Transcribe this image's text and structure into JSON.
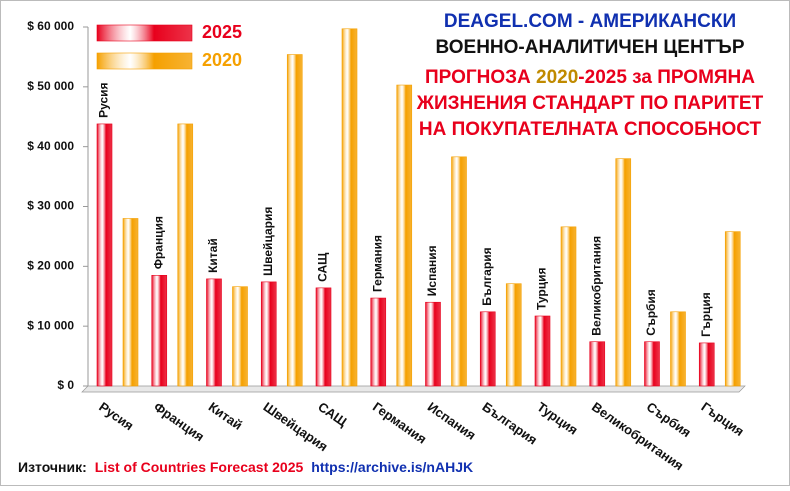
{
  "chart_data": {
    "type": "bar",
    "title_lines": [
      "DEAGEL.COM  -  АМЕРИКАНСКИ",
      "ВОЕННО-АНАЛИТИЧЕН ЦЕНТЪР"
    ],
    "subtitle_parts": [
      "ПРОГНОЗА ",
      "2020",
      "-2025 за ПРОМЯНА"
    ],
    "subtitle_lines": [
      "ЖИЗНЕНИЯ СТАНДАРТ ПО ПАРИТЕТ",
      "НА ПОКУПАТЕЛНАТА СПОСОБНОСТ"
    ],
    "source": [
      "Източник:",
      "List of Countries Forecast 2025",
      "https://archive.is/nAHJK"
    ],
    "categories": [
      "Русия",
      "Франция",
      "Китай",
      "Швейцария",
      "САЩ",
      "Германия",
      "Испания",
      "България",
      "Турция",
      "Великобритания",
      "Сърбия",
      "Гърция"
    ],
    "series": [
      {
        "name": "2025",
        "color": "#e8001c",
        "values": [
          43800,
          18500,
          17900,
          17400,
          16400,
          14700,
          14000,
          12400,
          11700,
          7400,
          7400,
          7200
        ]
      },
      {
        "name": "2020",
        "color": "#f5a000",
        "values": [
          28000,
          43800,
          16600,
          55400,
          59700,
          50300,
          38300,
          17100,
          26600,
          38000,
          12400,
          25800
        ]
      }
    ],
    "ylim": [
      0,
      60000
    ],
    "yticks": [
      {
        "value": 0,
        "label": "$ 0"
      },
      {
        "value": 10000,
        "label": "$ 10 000"
      },
      {
        "value": 20000,
        "label": "$ 20 000"
      },
      {
        "value": 30000,
        "label": "$ 30 000"
      },
      {
        "value": 40000,
        "label": "$ 40 000"
      },
      {
        "value": 50000,
        "label": "$ 50 000"
      },
      {
        "value": 60000,
        "label": "$ 60 000"
      }
    ],
    "grid": false
  }
}
